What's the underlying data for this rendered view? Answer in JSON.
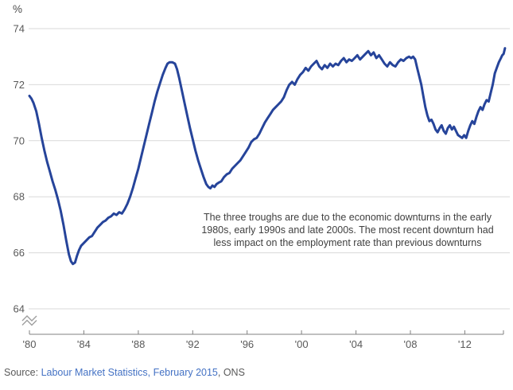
{
  "colors": {
    "line": "#26449a",
    "grid": "#d9d9d9",
    "axis": "#808080",
    "tick_label": "#595959",
    "annotation_text": "#404040",
    "source_text": "#595959",
    "link": "#4472c4"
  },
  "annotation": {
    "lines": [
      "The three troughs are due to the economic downturns in the early",
      "1980s, early 1990s and late 2000s. The most recent downturn had",
      "less impact on the employment rate than previous downturns"
    ]
  },
  "source": {
    "prefix": "Source: ",
    "link_text": "Labour Market Statistics, February 2015",
    "suffix": ", ONS"
  },
  "chart_data": {
    "type": "line",
    "ylabel": "%",
    "ylim": [
      64,
      74
    ],
    "x_range": [
      1980,
      2014.95
    ],
    "grid": true,
    "axis_break": true,
    "legend": "none",
    "y_ticks": [
      74,
      72,
      70,
      68,
      66,
      64
    ],
    "x_ticks": [
      {
        "label": "'80",
        "year": 1980
      },
      {
        "label": "'84",
        "year": 1984
      },
      {
        "label": "'88",
        "year": 1988
      },
      {
        "label": "'92",
        "year": 1992
      },
      {
        "label": "'96",
        "year": 1996
      },
      {
        "label": "'00",
        "year": 2000
      },
      {
        "label": "'04",
        "year": 2004
      },
      {
        "label": "'08",
        "year": 2008
      },
      {
        "label": "'12",
        "year": 2012
      }
    ],
    "points": [
      [
        1980.0,
        71.6
      ],
      [
        1980.15,
        71.5
      ],
      [
        1980.3,
        71.35
      ],
      [
        1980.5,
        71.05
      ],
      [
        1980.7,
        70.6
      ],
      [
        1980.9,
        70.1
      ],
      [
        1981.1,
        69.65
      ],
      [
        1981.3,
        69.25
      ],
      [
        1981.5,
        68.9
      ],
      [
        1981.7,
        68.55
      ],
      [
        1981.9,
        68.25
      ],
      [
        1982.1,
        67.9
      ],
      [
        1982.3,
        67.5
      ],
      [
        1982.5,
        67.0
      ],
      [
        1982.7,
        66.45
      ],
      [
        1982.9,
        65.95
      ],
      [
        1983.05,
        65.7
      ],
      [
        1983.2,
        65.6
      ],
      [
        1983.35,
        65.65
      ],
      [
        1983.5,
        65.9
      ],
      [
        1983.65,
        66.1
      ],
      [
        1983.8,
        66.25
      ],
      [
        1984.0,
        66.35
      ],
      [
        1984.2,
        66.45
      ],
      [
        1984.4,
        66.55
      ],
      [
        1984.6,
        66.6
      ],
      [
        1984.8,
        66.75
      ],
      [
        1985.0,
        66.9
      ],
      [
        1985.2,
        67.0
      ],
      [
        1985.4,
        67.1
      ],
      [
        1985.6,
        67.15
      ],
      [
        1985.8,
        67.25
      ],
      [
        1986.0,
        67.3
      ],
      [
        1986.2,
        67.4
      ],
      [
        1986.4,
        67.35
      ],
      [
        1986.6,
        67.45
      ],
      [
        1986.8,
        67.4
      ],
      [
        1987.0,
        67.55
      ],
      [
        1987.2,
        67.75
      ],
      [
        1987.4,
        68.0
      ],
      [
        1987.6,
        68.3
      ],
      [
        1987.8,
        68.65
      ],
      [
        1988.0,
        69.0
      ],
      [
        1988.2,
        69.4
      ],
      [
        1988.4,
        69.8
      ],
      [
        1988.6,
        70.2
      ],
      [
        1988.8,
        70.6
      ],
      [
        1989.0,
        71.0
      ],
      [
        1989.2,
        71.4
      ],
      [
        1989.4,
        71.75
      ],
      [
        1989.6,
        72.05
      ],
      [
        1989.8,
        72.35
      ],
      [
        1990.0,
        72.6
      ],
      [
        1990.15,
        72.75
      ],
      [
        1990.3,
        72.8
      ],
      [
        1990.5,
        72.8
      ],
      [
        1990.7,
        72.75
      ],
      [
        1990.85,
        72.55
      ],
      [
        1991.0,
        72.25
      ],
      [
        1991.2,
        71.8
      ],
      [
        1991.4,
        71.35
      ],
      [
        1991.6,
        70.9
      ],
      [
        1991.8,
        70.45
      ],
      [
        1992.0,
        70.05
      ],
      [
        1992.2,
        69.65
      ],
      [
        1992.4,
        69.3
      ],
      [
        1992.6,
        69.0
      ],
      [
        1992.8,
        68.7
      ],
      [
        1993.0,
        68.45
      ],
      [
        1993.15,
        68.35
      ],
      [
        1993.3,
        68.3
      ],
      [
        1993.45,
        68.4
      ],
      [
        1993.6,
        68.35
      ],
      [
        1993.75,
        68.45
      ],
      [
        1993.9,
        68.5
      ],
      [
        1994.1,
        68.55
      ],
      [
        1994.3,
        68.7
      ],
      [
        1994.5,
        68.8
      ],
      [
        1994.7,
        68.85
      ],
      [
        1994.9,
        69.0
      ],
      [
        1995.1,
        69.1
      ],
      [
        1995.3,
        69.2
      ],
      [
        1995.5,
        69.3
      ],
      [
        1995.7,
        69.45
      ],
      [
        1995.9,
        69.6
      ],
      [
        1996.1,
        69.75
      ],
      [
        1996.3,
        69.95
      ],
      [
        1996.5,
        70.05
      ],
      [
        1996.7,
        70.1
      ],
      [
        1996.9,
        70.25
      ],
      [
        1997.1,
        70.45
      ],
      [
        1997.3,
        70.65
      ],
      [
        1997.5,
        70.8
      ],
      [
        1997.7,
        70.95
      ],
      [
        1997.9,
        71.1
      ],
      [
        1998.1,
        71.2
      ],
      [
        1998.3,
        71.3
      ],
      [
        1998.5,
        71.4
      ],
      [
        1998.7,
        71.55
      ],
      [
        1998.9,
        71.8
      ],
      [
        1999.1,
        72.0
      ],
      [
        1999.3,
        72.1
      ],
      [
        1999.5,
        72.0
      ],
      [
        1999.7,
        72.2
      ],
      [
        1999.9,
        72.35
      ],
      [
        2000.1,
        72.45
      ],
      [
        2000.3,
        72.6
      ],
      [
        2000.5,
        72.5
      ],
      [
        2000.7,
        72.65
      ],
      [
        2000.9,
        72.75
      ],
      [
        2001.1,
        72.85
      ],
      [
        2001.3,
        72.65
      ],
      [
        2001.5,
        72.55
      ],
      [
        2001.7,
        72.7
      ],
      [
        2001.9,
        72.6
      ],
      [
        2002.1,
        72.75
      ],
      [
        2002.3,
        72.65
      ],
      [
        2002.5,
        72.75
      ],
      [
        2002.7,
        72.7
      ],
      [
        2002.9,
        72.85
      ],
      [
        2003.1,
        72.95
      ],
      [
        2003.3,
        72.8
      ],
      [
        2003.5,
        72.9
      ],
      [
        2003.7,
        72.85
      ],
      [
        2003.9,
        72.95
      ],
      [
        2004.1,
        73.05
      ],
      [
        2004.3,
        72.9
      ],
      [
        2004.5,
        73.0
      ],
      [
        2004.7,
        73.1
      ],
      [
        2004.9,
        73.2
      ],
      [
        2005.1,
        73.05
      ],
      [
        2005.3,
        73.15
      ],
      [
        2005.5,
        72.95
      ],
      [
        2005.7,
        73.05
      ],
      [
        2005.9,
        72.9
      ],
      [
        2006.1,
        72.75
      ],
      [
        2006.3,
        72.65
      ],
      [
        2006.5,
        72.8
      ],
      [
        2006.7,
        72.7
      ],
      [
        2006.9,
        72.65
      ],
      [
        2007.1,
        72.8
      ],
      [
        2007.3,
        72.9
      ],
      [
        2007.5,
        72.85
      ],
      [
        2007.7,
        72.95
      ],
      [
        2007.9,
        73.0
      ],
      [
        2008.05,
        72.95
      ],
      [
        2008.2,
        73.0
      ],
      [
        2008.35,
        72.9
      ],
      [
        2008.5,
        72.6
      ],
      [
        2008.65,
        72.3
      ],
      [
        2008.8,
        72.0
      ],
      [
        2008.95,
        71.6
      ],
      [
        2009.1,
        71.2
      ],
      [
        2009.25,
        70.9
      ],
      [
        2009.4,
        70.7
      ],
      [
        2009.55,
        70.75
      ],
      [
        2009.7,
        70.6
      ],
      [
        2009.85,
        70.4
      ],
      [
        2010.0,
        70.3
      ],
      [
        2010.15,
        70.45
      ],
      [
        2010.3,
        70.55
      ],
      [
        2010.45,
        70.35
      ],
      [
        2010.6,
        70.25
      ],
      [
        2010.75,
        70.45
      ],
      [
        2010.9,
        70.55
      ],
      [
        2011.05,
        70.4
      ],
      [
        2011.2,
        70.5
      ],
      [
        2011.35,
        70.35
      ],
      [
        2011.5,
        70.2
      ],
      [
        2011.65,
        70.15
      ],
      [
        2011.8,
        70.1
      ],
      [
        2011.95,
        70.2
      ],
      [
        2012.1,
        70.1
      ],
      [
        2012.25,
        70.35
      ],
      [
        2012.4,
        70.55
      ],
      [
        2012.55,
        70.7
      ],
      [
        2012.7,
        70.6
      ],
      [
        2012.85,
        70.85
      ],
      [
        2013.0,
        71.05
      ],
      [
        2013.15,
        71.2
      ],
      [
        2013.3,
        71.1
      ],
      [
        2013.45,
        71.3
      ],
      [
        2013.6,
        71.45
      ],
      [
        2013.75,
        71.4
      ],
      [
        2013.9,
        71.7
      ],
      [
        2014.05,
        72.0
      ],
      [
        2014.2,
        72.4
      ],
      [
        2014.35,
        72.6
      ],
      [
        2014.5,
        72.8
      ],
      [
        2014.65,
        72.95
      ],
      [
        2014.75,
        73.05
      ],
      [
        2014.85,
        73.1
      ],
      [
        2014.95,
        73.3
      ]
    ]
  }
}
